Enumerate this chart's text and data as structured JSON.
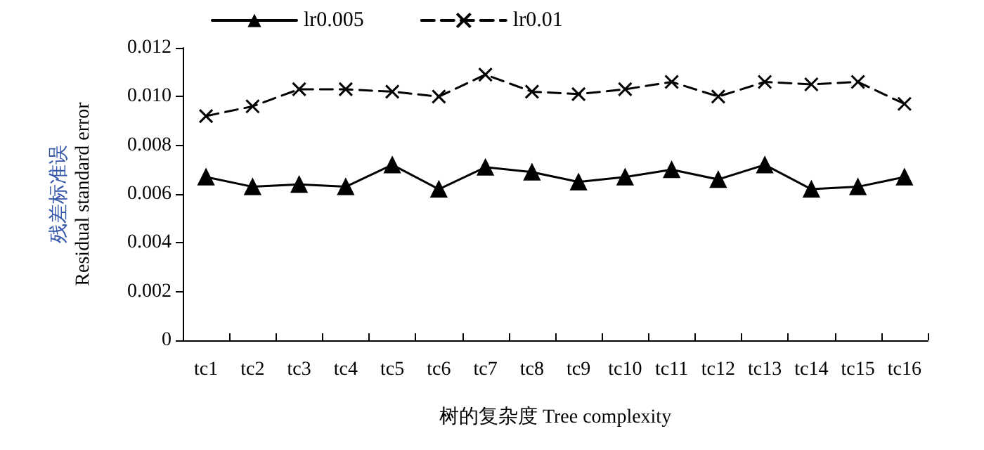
{
  "chart_data": {
    "type": "line",
    "xlabel": "树的复杂度 Tree complexity",
    "ylabel": "残差标准误\nResidual standard error",
    "categories": [
      "tc1",
      "tc2",
      "tc3",
      "tc4",
      "tc5",
      "tc6",
      "tc7",
      "tc8",
      "tc9",
      "tc10",
      "tc11",
      "tc12",
      "tc13",
      "tc14",
      "tc15",
      "tc16"
    ],
    "series": [
      {
        "name": "lr0.005",
        "color": "#000000",
        "marker": "triangle",
        "line_style": "solid",
        "values": [
          0.0067,
          0.0063,
          0.0064,
          0.0063,
          0.0072,
          0.0062,
          0.0071,
          0.0069,
          0.0065,
          0.0067,
          0.007,
          0.0066,
          0.0072,
          0.0062,
          0.0063,
          0.0067
        ]
      },
      {
        "name": "lr0.01",
        "color": "#000000",
        "marker": "cross",
        "line_style": "dashed",
        "values": [
          0.0092,
          0.0096,
          0.0103,
          0.0103,
          0.0102,
          0.01,
          0.0109,
          0.0102,
          0.0101,
          0.0103,
          0.0106,
          0.01,
          0.0106,
          0.0105,
          0.0106,
          0.0097
        ]
      }
    ],
    "ylim": [
      0,
      0.012
    ],
    "yticks": [
      0,
      0.002,
      0.004,
      0.006,
      0.008,
      {
        "value": 0.01,
        "label": "0.010"
      },
      0.012
    ],
    "grid": false,
    "legend": "top left"
  }
}
